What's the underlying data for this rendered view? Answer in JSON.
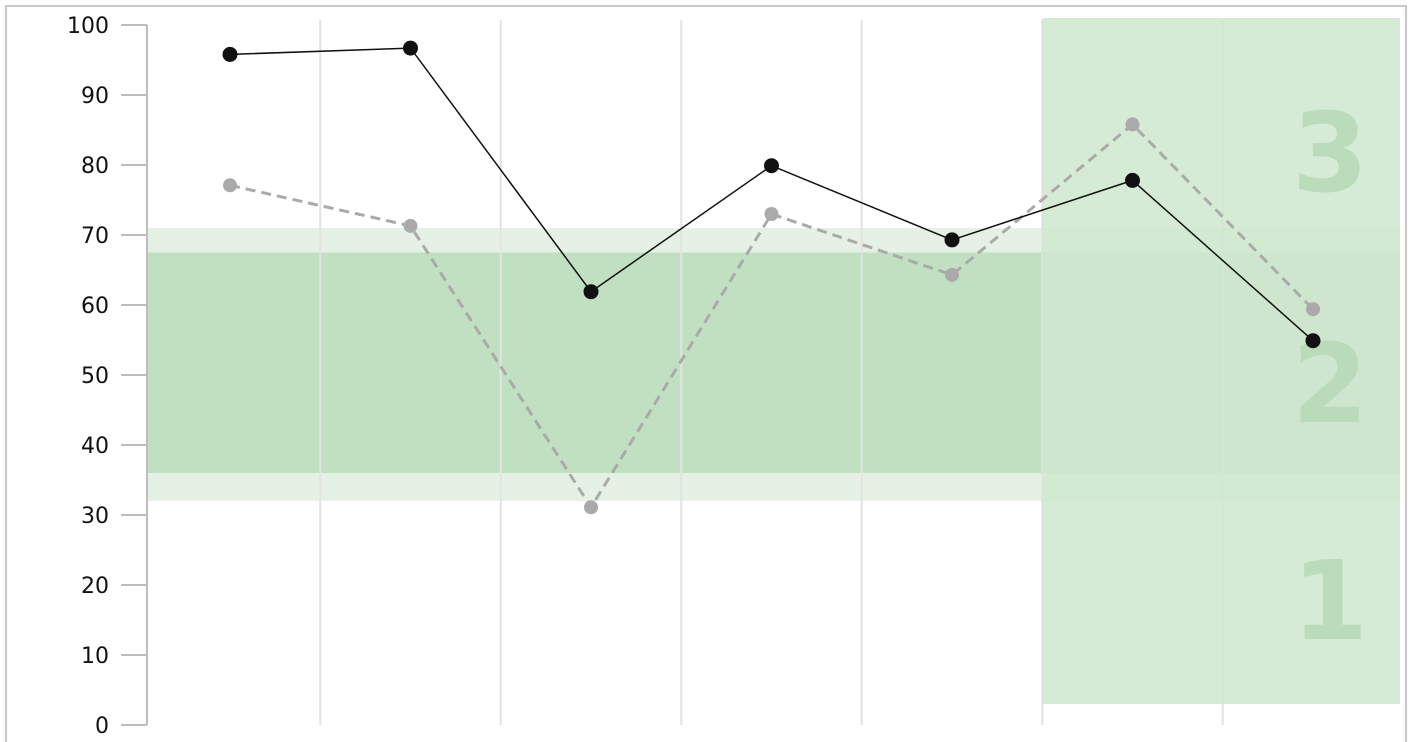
{
  "chart_data": {
    "type": "line",
    "x": [
      1,
      2,
      3,
      4,
      5,
      6,
      7
    ],
    "ylim": [
      0,
      100
    ],
    "yticks": [
      0,
      10,
      20,
      30,
      40,
      50,
      60,
      70,
      80,
      90,
      100
    ],
    "grid": "vertical",
    "series": [
      {
        "style": "solid",
        "color": "#111111",
        "values": [
          95.8,
          96.7,
          61.9,
          79.9,
          69.3,
          77.8,
          54.9
        ]
      },
      {
        "style": "dashed",
        "color": "#aaaaaa",
        "values": [
          77.1,
          71.3,
          31.1,
          73.0,
          64.3,
          85.8,
          59.4
        ]
      }
    ],
    "bands": [
      {
        "y0": 32,
        "y1": 71,
        "color": "#e4f1e4"
      },
      {
        "y0": 36,
        "y1": 67.5,
        "color": "#c1dfc1"
      }
    ],
    "highlight_region": {
      "x_from": 5.5,
      "x_to": 7.5,
      "y0": 3,
      "y1": 101,
      "color": "#cfe7cf"
    },
    "zone_labels": [
      {
        "text": "3",
        "y": 82
      },
      {
        "text": "2",
        "y": 49
      },
      {
        "text": "1",
        "y": 18
      }
    ]
  }
}
